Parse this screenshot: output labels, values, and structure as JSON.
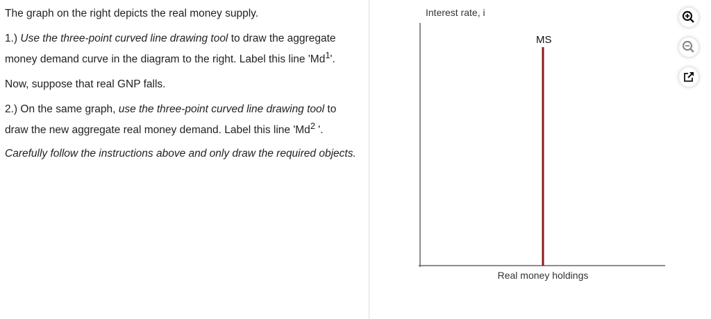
{
  "instructions": {
    "p1": "The graph on the right depicts the real money supply.",
    "p2_prefix": "1.) ",
    "p2_italic": "Use the three-point curved line drawing tool",
    "p2_rest": " to draw the aggregate money demand curve in the diagram to the right. Label this line 'Md",
    "p2_sup": "1",
    "p2_end": "'.",
    "p3": "Now, suppose that real GNP falls.",
    "p4_prefix": "2.) On the same graph, ",
    "p4_italic": "use the three-point curved line drawing tool",
    "p4_rest": " to draw the new aggregate real money demand. Label this line 'Md",
    "p4_sup": "2",
    "p4_end": " '.",
    "p5": "Carefully follow the instructions above and only draw the required objects."
  },
  "graph": {
    "y_label": "Interest rate, i",
    "x_label": "Real money holdings",
    "curve_label": "MS",
    "curve_color": "#8b1a1a"
  },
  "tools": [
    "zoom-in-icon",
    "zoom-out-icon",
    "expand-icon"
  ]
}
